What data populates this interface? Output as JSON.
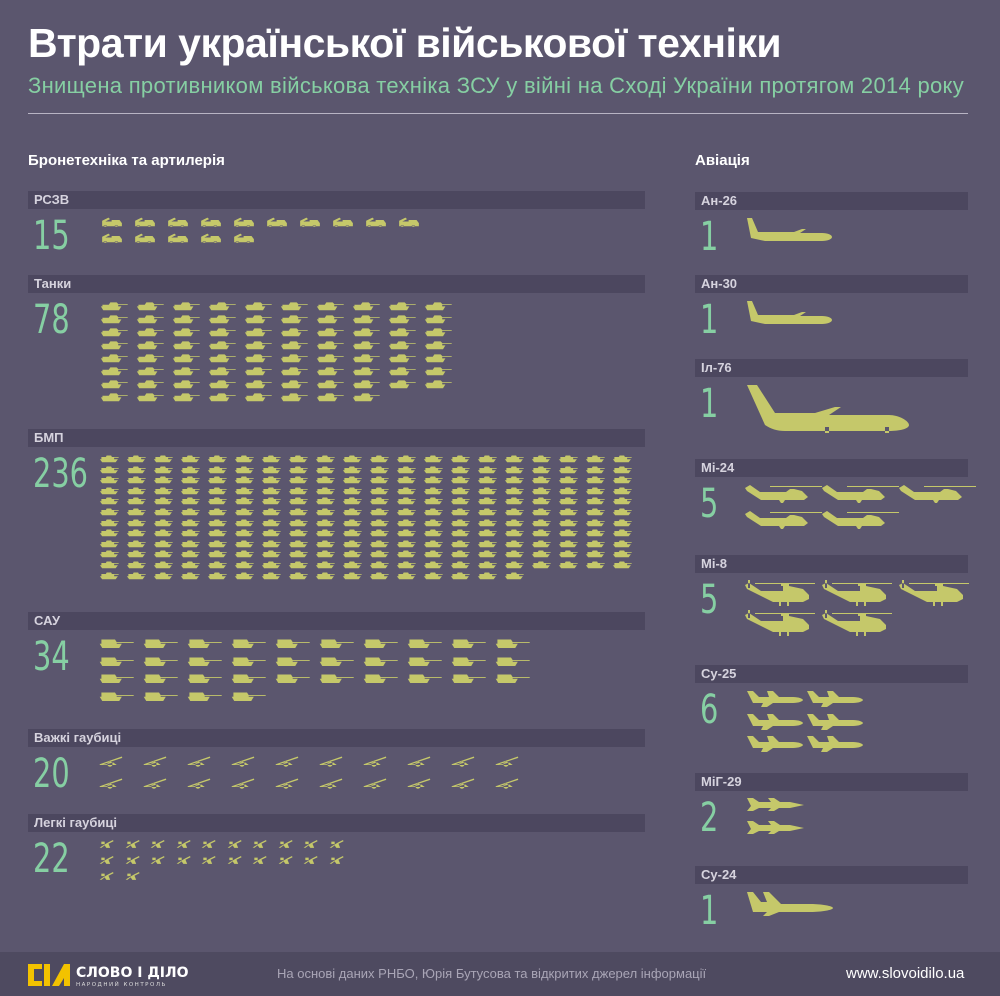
{
  "title": "Втрати української військової техніки",
  "subtitle": "Знищена противником військова техніка ЗСУ у війні на Сході України протягом 2014 року",
  "left_heading": "Бронетехніка та артилерія",
  "right_heading": "Авіація",
  "colors": {
    "background": "#5b566e",
    "bar": "#4c475f",
    "number": "#86cfa3",
    "icon": "#c5c86a"
  },
  "chart_data": {
    "type": "pictogram",
    "groups": [
      {
        "name": "Бронетехніка та артилерія",
        "items": [
          {
            "label": "РСЗВ",
            "value": 15,
            "icon": "mlrs-icon",
            "per_row": 10
          },
          {
            "label": "Танки",
            "value": 78,
            "icon": "tank-icon",
            "per_row": 10
          },
          {
            "label": "БМП",
            "value": 236,
            "icon": "ifv-icon",
            "per_row": 20
          },
          {
            "label": "САУ",
            "value": 34,
            "icon": "spg-icon",
            "per_row": 10
          },
          {
            "label": "Важкі гаубиці",
            "value": 20,
            "icon": "heavy-howitzer-icon",
            "per_row": 10
          },
          {
            "label": "Легкі гаубиці",
            "value": 22,
            "icon": "light-howitzer-icon",
            "per_row": 10
          }
        ]
      },
      {
        "name": "Авіація",
        "items": [
          {
            "label": "Ан-26",
            "value": 1,
            "icon": "transport-plane-icon",
            "per_row": 1
          },
          {
            "label": "Ан-30",
            "value": 1,
            "icon": "transport-plane-icon",
            "per_row": 1
          },
          {
            "label": "Іл-76",
            "value": 1,
            "icon": "heavy-transport-plane-icon",
            "per_row": 1
          },
          {
            "label": "Мі-24",
            "value": 5,
            "icon": "attack-helicopter-icon",
            "per_row": 3
          },
          {
            "label": "Мі-8",
            "value": 5,
            "icon": "transport-helicopter-icon",
            "per_row": 3
          },
          {
            "label": "Су-25",
            "value": 6,
            "icon": "attack-jet-icon",
            "per_row": 2
          },
          {
            "label": "МіГ-29",
            "value": 2,
            "icon": "fighter-jet-icon",
            "per_row": 1
          },
          {
            "label": "Су-24",
            "value": 1,
            "icon": "bomber-jet-icon",
            "per_row": 1
          }
        ]
      }
    ]
  },
  "footer": {
    "logo_text": "СЛОВО І ДІЛО",
    "logo_sub": "НАРОДНИЙ КОНТРОЛЬ",
    "source": "На основі даних РНБО, Юрія Бутусова та відкритих джерел інформації",
    "url": "www.slovoidilo.ua"
  }
}
